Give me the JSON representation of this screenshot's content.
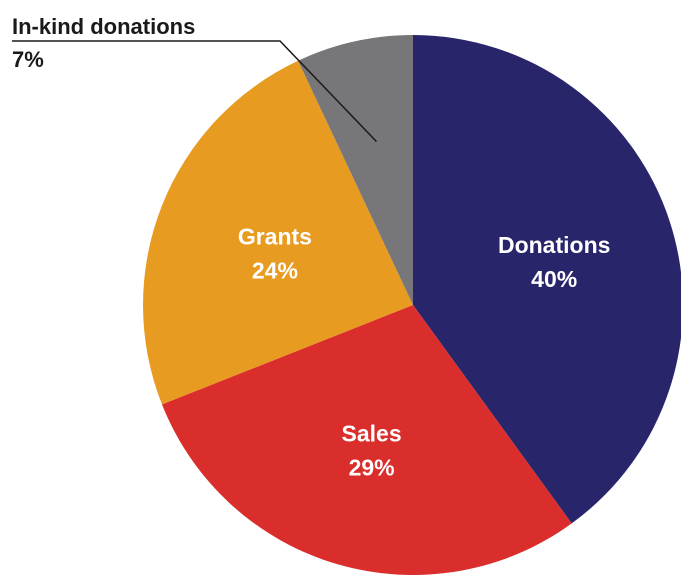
{
  "chart_data": {
    "type": "pie",
    "start_angle_deg": 0,
    "direction": "clockwise",
    "slices": [
      {
        "label": "Donations",
        "value": 40,
        "value_label": "40%",
        "color": "#29256b",
        "label_placement": "inside",
        "label_color": "#ffffff"
      },
      {
        "label": "Sales",
        "value": 29,
        "value_label": "29%",
        "color": "#d92e2b",
        "label_placement": "inside",
        "label_color": "#ffffff"
      },
      {
        "label": "Grants",
        "value": 24,
        "value_label": "24%",
        "color": "#e89b21",
        "label_placement": "inside",
        "label_color": "#ffffff"
      },
      {
        "label": "In-kind donations",
        "value": 7,
        "value_label": "7%",
        "color": "#77777a",
        "label_placement": "outside-top-left",
        "label_color": "#1a1a1a"
      }
    ]
  }
}
